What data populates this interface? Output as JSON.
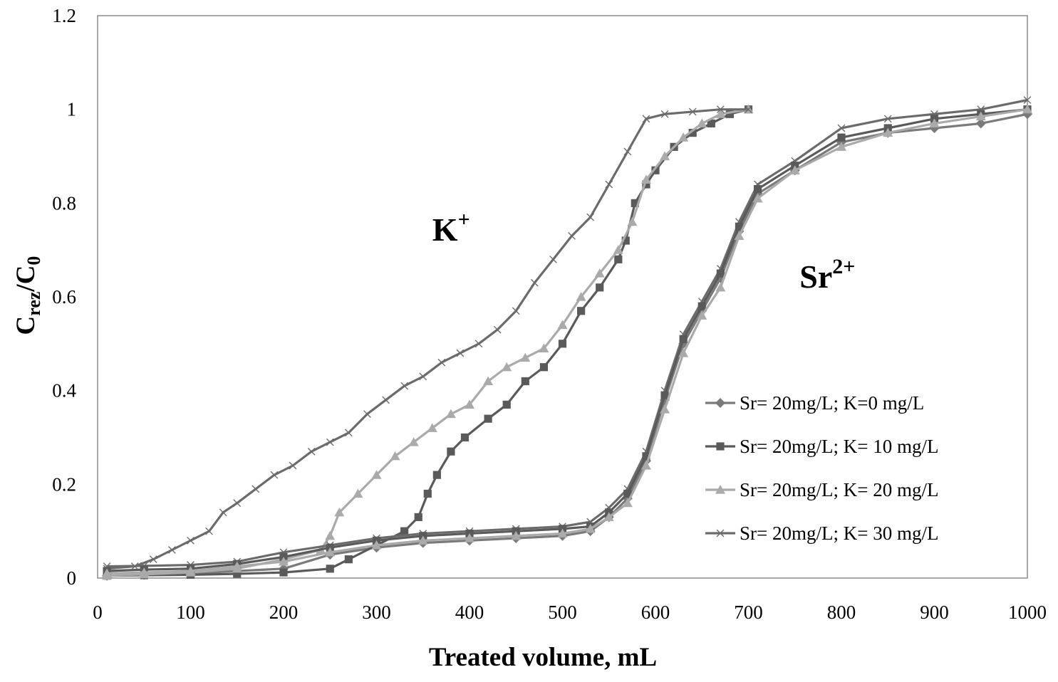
{
  "chart_data": {
    "type": "line",
    "title": "",
    "xlabel": "Treated volume, mL",
    "ylabel_main": "C",
    "ylabel_sub1": "rez",
    "ylabel_mid": "/C",
    "ylabel_sub2": "0",
    "xlim": [
      0,
      1000
    ],
    "ylim": [
      0,
      1.2
    ],
    "xticks": [
      0,
      100,
      200,
      300,
      400,
      500,
      600,
      700,
      800,
      900,
      1000
    ],
    "yticks": [
      0,
      0.2,
      0.4,
      0.6,
      0.8,
      1,
      1.2
    ],
    "xtick_labels": [
      "0",
      "100",
      "200",
      "300",
      "400",
      "500",
      "600",
      "700",
      "800",
      "900",
      "1000"
    ],
    "ytick_labels": [
      "0",
      "0.2",
      "0.4",
      "0.6",
      "0.8",
      "1",
      "1.2"
    ],
    "grid": false,
    "legend_position": "lower-right",
    "annotations": [
      {
        "base": "K",
        "sup": "+",
        "x": 360,
        "y": 0.72
      },
      {
        "base": "Sr",
        "sup": "2+",
        "x": 755,
        "y": 0.62
      }
    ],
    "series": [
      {
        "name": "Sr= 20mg/L; K=0 mg/L",
        "marker": "diamond",
        "color": "#7a7a7a",
        "x": [
          10,
          50,
          100,
          150,
          200,
          250,
          300,
          350,
          400,
          450,
          500,
          530,
          550,
          570,
          590,
          610,
          630,
          650,
          670,
          690,
          710,
          750,
          800,
          850,
          900,
          950,
          1000
        ],
        "y": [
          0.005,
          0.007,
          0.01,
          0.015,
          0.02,
          0.05,
          0.065,
          0.075,
          0.08,
          0.085,
          0.09,
          0.1,
          0.13,
          0.17,
          0.25,
          0.38,
          0.5,
          0.57,
          0.64,
          0.74,
          0.82,
          0.87,
          0.93,
          0.95,
          0.96,
          0.97,
          0.99
        ]
      },
      {
        "name": "Sr= 20mg/L; K= 10 mg/L",
        "marker": "square",
        "color": "#5a5a5a",
        "x": [
          10,
          50,
          100,
          150,
          200,
          250,
          270,
          300,
          330,
          345,
          355,
          365,
          380,
          395,
          420,
          440,
          460,
          480,
          500,
          520,
          540,
          560,
          568,
          578,
          590,
          600,
          620,
          640,
          660,
          680,
          700
        ],
        "y": [
          0.005,
          0.006,
          0.007,
          0.009,
          0.012,
          0.02,
          0.04,
          0.07,
          0.1,
          0.13,
          0.18,
          0.22,
          0.27,
          0.3,
          0.34,
          0.37,
          0.42,
          0.45,
          0.5,
          0.57,
          0.62,
          0.68,
          0.72,
          0.8,
          0.84,
          0.87,
          0.92,
          0.95,
          0.97,
          0.99,
          1.0
        ]
      },
      {
        "name": "Sr= 20mg/L; K= 20 mg/L",
        "marker": "triangle",
        "color": "#aaaaaa",
        "x": [
          10,
          50,
          100,
          150,
          200,
          240,
          250,
          260,
          280,
          300,
          320,
          340,
          360,
          380,
          400,
          420,
          440,
          460,
          480,
          500,
          520,
          540,
          560,
          575,
          590,
          610,
          630,
          650,
          670,
          700
        ],
        "y": [
          0.005,
          0.008,
          0.012,
          0.02,
          0.04,
          0.06,
          0.09,
          0.14,
          0.18,
          0.22,
          0.26,
          0.29,
          0.32,
          0.35,
          0.37,
          0.42,
          0.45,
          0.47,
          0.49,
          0.54,
          0.6,
          0.65,
          0.7,
          0.76,
          0.85,
          0.9,
          0.94,
          0.97,
          0.99,
          1.0
        ]
      },
      {
        "name": "Sr= 20mg/L; K= 30 mg/L",
        "marker": "x",
        "color": "#6b6b6b",
        "x": [
          10,
          40,
          60,
          80,
          100,
          120,
          135,
          150,
          170,
          190,
          210,
          230,
          250,
          270,
          290,
          310,
          330,
          350,
          370,
          390,
          410,
          430,
          450,
          470,
          490,
          510,
          530,
          550,
          570,
          590,
          610,
          640,
          670,
          700
        ],
        "y": [
          0.02,
          0.025,
          0.04,
          0.06,
          0.08,
          0.1,
          0.14,
          0.16,
          0.19,
          0.22,
          0.24,
          0.27,
          0.29,
          0.31,
          0.35,
          0.38,
          0.41,
          0.43,
          0.46,
          0.48,
          0.5,
          0.53,
          0.57,
          0.63,
          0.68,
          0.73,
          0.77,
          0.84,
          0.91,
          0.98,
          0.99,
          0.995,
          1.0,
          1.0
        ]
      },
      {
        "name": "",
        "marker": "x",
        "color": "#6b6b6b",
        "x": [
          10,
          50,
          100,
          150,
          200,
          250,
          300,
          350,
          400,
          450,
          500,
          530,
          550,
          570,
          590,
          610,
          630,
          650,
          670,
          690,
          710,
          750,
          800,
          850,
          900,
          950,
          1000
        ],
        "y": [
          0.025,
          0.026,
          0.028,
          0.035,
          0.055,
          0.07,
          0.085,
          0.095,
          0.1,
          0.105,
          0.11,
          0.12,
          0.15,
          0.19,
          0.27,
          0.4,
          0.52,
          0.59,
          0.66,
          0.76,
          0.84,
          0.89,
          0.96,
          0.98,
          0.99,
          1.0,
          1.02
        ]
      },
      {
        "name": "",
        "marker": "square",
        "color": "#5a5a5a",
        "x": [
          10,
          50,
          100,
          150,
          200,
          250,
          300,
          350,
          400,
          450,
          500,
          530,
          550,
          570,
          590,
          610,
          630,
          650,
          670,
          690,
          710,
          750,
          800,
          850,
          900,
          950,
          1000
        ],
        "y": [
          0.015,
          0.018,
          0.02,
          0.03,
          0.045,
          0.065,
          0.08,
          0.09,
          0.095,
          0.1,
          0.105,
          0.11,
          0.14,
          0.18,
          0.26,
          0.39,
          0.51,
          0.58,
          0.65,
          0.75,
          0.83,
          0.88,
          0.94,
          0.96,
          0.98,
          0.99,
          1.0
        ]
      },
      {
        "name": "",
        "marker": "triangle",
        "color": "#aaaaaa",
        "x": [
          10,
          50,
          100,
          150,
          200,
          250,
          300,
          350,
          400,
          450,
          500,
          530,
          550,
          570,
          590,
          610,
          630,
          650,
          670,
          690,
          710,
          750,
          800,
          850,
          900,
          950,
          1000
        ],
        "y": [
          0.01,
          0.012,
          0.015,
          0.025,
          0.035,
          0.055,
          0.07,
          0.08,
          0.085,
          0.09,
          0.095,
          0.105,
          0.13,
          0.16,
          0.24,
          0.36,
          0.48,
          0.56,
          0.62,
          0.73,
          0.81,
          0.87,
          0.92,
          0.95,
          0.97,
          0.985,
          1.0
        ]
      }
    ]
  }
}
